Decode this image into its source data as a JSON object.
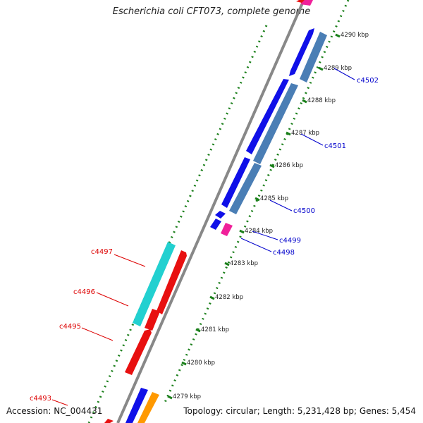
{
  "title": "Escherichia coli CFT073, complete genome",
  "accession": "Accession: NC_004431",
  "stats": "Topology: circular; Length: 5,231,428 bp; Genes: 5,454",
  "colors": {
    "backbone": "#888888",
    "ticks": "#1a7f1a",
    "forward_label": "#0000cc",
    "reverse_label": "#dd0000",
    "blue": "#1010e8",
    "steel": "#4a7eb5",
    "red": "#e81010",
    "cyan": "#22d0d0",
    "magenta": "#f0209a",
    "orange": "#ff9900"
  },
  "scale_labels": [
    "4290 kbp",
    "4289 kbp",
    "4288 kbp",
    "4287 kbp",
    "4286 kbp",
    "4285 kbp",
    "4284 kbp",
    "4283 kbp",
    "4282 kbp",
    "4281 kbp",
    "4280 kbp",
    "4279 kbp"
  ],
  "gene_labels_forward": [
    "c4502",
    "c4501",
    "c4500",
    "c4499",
    "c4498"
  ],
  "gene_labels_reverse": [
    "c4497",
    "c4496",
    "c4495",
    "c4493"
  ]
}
